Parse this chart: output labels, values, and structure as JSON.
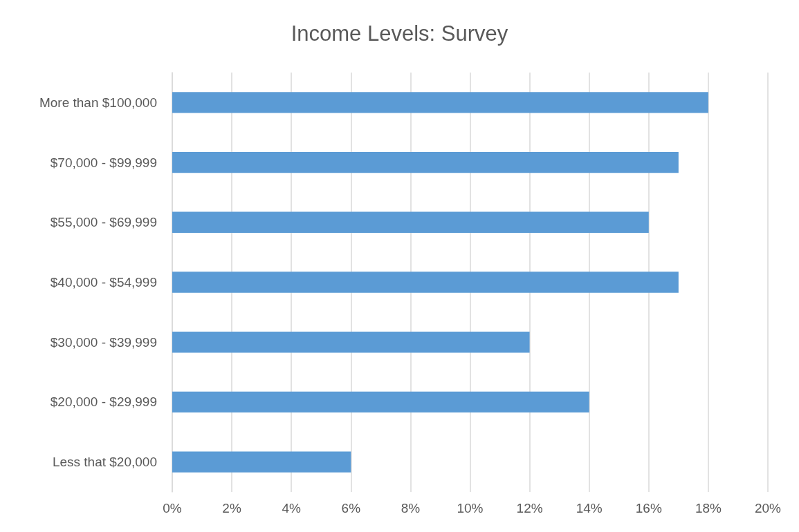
{
  "chart_data": {
    "type": "bar",
    "orientation": "horizontal",
    "title": "Income Levels: Survey",
    "categories": [
      "More than $100,000",
      "$70,000 - $99,999",
      "$55,000 - $69,999",
      "$40,000 - $54,999",
      "$30,000 - $39,999",
      "$20,000 - $29,999",
      "Less that $20,000"
    ],
    "values": [
      18,
      17,
      16,
      17,
      12,
      14,
      6
    ],
    "color": "#5b9bd5",
    "xlim": [
      0,
      20
    ],
    "xticks": [
      {
        "value": 0,
        "label": "0%"
      },
      {
        "value": 2,
        "label": "2%"
      },
      {
        "value": 4,
        "label": "4%"
      },
      {
        "value": 6,
        "label": "6%"
      },
      {
        "value": 8,
        "label": "8%"
      },
      {
        "value": 10,
        "label": "10%"
      },
      {
        "value": 12,
        "label": "12%"
      },
      {
        "value": 14,
        "label": "14%"
      },
      {
        "value": 16,
        "label": "16%"
      },
      {
        "value": 18,
        "label": "18%"
      },
      {
        "value": 20,
        "label": "20%"
      }
    ],
    "grid": "x"
  }
}
